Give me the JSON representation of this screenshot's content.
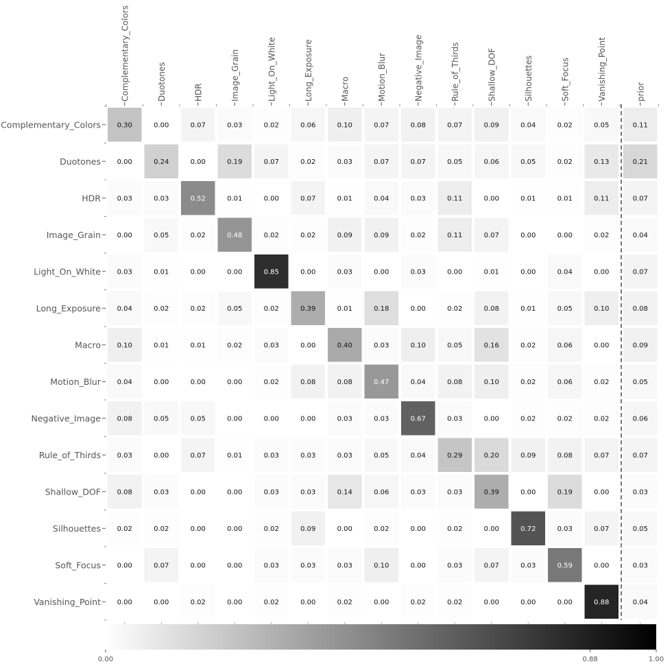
{
  "chart_data": {
    "type": "heatmap",
    "title": "",
    "colormap": "Greys",
    "rows": [
      "Complementary_Colors",
      "Duotones",
      "HDR",
      "Image_Grain",
      "Light_On_White",
      "Long_Exposure",
      "Macro",
      "Motion_Blur",
      "Negative_Image",
      "Rule_of_Thirds",
      "Shallow_DOF",
      "Silhouettes",
      "Soft_Focus",
      "Vanishing_Point"
    ],
    "columns": [
      "Complementary_Colors",
      "Duotones",
      "HDR",
      "Image_Grain",
      "Light_On_White",
      "Long_Exposure",
      "Macro",
      "Motion_Blur",
      "Negative_Image",
      "Rule_of_Thirds",
      "Shallow_DOF",
      "Silhouettes",
      "Soft_Focus",
      "Vanishing_Point",
      "prior"
    ],
    "separator_before_column": "prior",
    "values": [
      [
        0.3,
        0.0,
        0.07,
        0.03,
        0.02,
        0.06,
        0.1,
        0.07,
        0.08,
        0.07,
        0.09,
        0.04,
        0.02,
        0.05,
        0.11
      ],
      [
        0.0,
        0.24,
        0.0,
        0.19,
        0.07,
        0.02,
        0.03,
        0.07,
        0.07,
        0.05,
        0.06,
        0.05,
        0.02,
        0.13,
        0.21
      ],
      [
        0.03,
        0.03,
        0.52,
        0.01,
        0.0,
        0.07,
        0.01,
        0.04,
        0.03,
        0.11,
        0.0,
        0.01,
        0.01,
        0.11,
        0.07
      ],
      [
        0.0,
        0.05,
        0.02,
        0.48,
        0.02,
        0.02,
        0.09,
        0.09,
        0.02,
        0.11,
        0.07,
        0.0,
        0.0,
        0.02,
        0.04
      ],
      [
        0.03,
        0.01,
        0.0,
        0.0,
        0.85,
        0.0,
        0.03,
        0.0,
        0.03,
        0.0,
        0.01,
        0.0,
        0.04,
        0.0,
        0.07
      ],
      [
        0.04,
        0.02,
        0.02,
        0.05,
        0.02,
        0.39,
        0.01,
        0.18,
        0.0,
        0.02,
        0.08,
        0.01,
        0.05,
        0.1,
        0.08
      ],
      [
        0.1,
        0.01,
        0.01,
        0.02,
        0.03,
        0.0,
        0.4,
        0.03,
        0.1,
        0.05,
        0.16,
        0.02,
        0.06,
        0.0,
        0.09
      ],
      [
        0.04,
        0.0,
        0.0,
        0.0,
        0.02,
        0.08,
        0.08,
        0.47,
        0.04,
        0.08,
        0.1,
        0.02,
        0.06,
        0.02,
        0.05
      ],
      [
        0.08,
        0.05,
        0.05,
        0.0,
        0.0,
        0.0,
        0.03,
        0.03,
        0.67,
        0.03,
        0.0,
        0.02,
        0.02,
        0.02,
        0.06
      ],
      [
        0.03,
        0.0,
        0.07,
        0.01,
        0.03,
        0.03,
        0.03,
        0.05,
        0.04,
        0.29,
        0.2,
        0.09,
        0.08,
        0.07,
        0.07
      ],
      [
        0.08,
        0.03,
        0.0,
        0.0,
        0.03,
        0.03,
        0.14,
        0.06,
        0.03,
        0.03,
        0.39,
        0.0,
        0.19,
        0.0,
        0.03
      ],
      [
        0.02,
        0.02,
        0.0,
        0.0,
        0.02,
        0.09,
        0.0,
        0.02,
        0.0,
        0.02,
        0.0,
        0.72,
        0.03,
        0.07,
        0.05
      ],
      [
        0.0,
        0.07,
        0.0,
        0.0,
        0.03,
        0.03,
        0.03,
        0.1,
        0.0,
        0.03,
        0.07,
        0.03,
        0.59,
        0.0,
        0.03
      ],
      [
        0.0,
        0.0,
        0.02,
        0.0,
        0.02,
        0.0,
        0.02,
        0.0,
        0.02,
        0.02,
        0.0,
        0.0,
        0.0,
        0.88,
        0.04
      ]
    ],
    "colorbar": {
      "min": 0.0,
      "max": 1.0,
      "ticks": [
        "0.00",
        "0.88",
        "1.00"
      ]
    }
  }
}
